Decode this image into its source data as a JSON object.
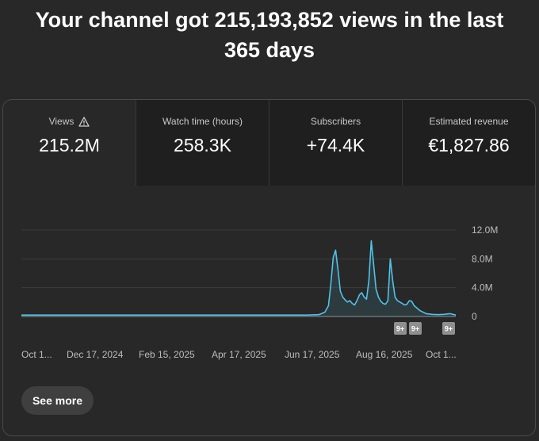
{
  "headline": {
    "line1": "Your channel got 215,193,852 views in the last",
    "line2": "365 days"
  },
  "tabs": [
    {
      "label": "Views",
      "value": "215.2M",
      "icon": "warning-icon",
      "active": true
    },
    {
      "label": "Watch time (hours)",
      "value": "258.3K"
    },
    {
      "label": "Subscribers",
      "value": "+74.4K"
    },
    {
      "label": "Estimated revenue",
      "value": "€1,827.86"
    }
  ],
  "see_more_label": "See more",
  "colors": {
    "series": "#4fc3e8",
    "background": "#282828",
    "tab_inactive": "#1f1f1f",
    "badge": "#8f8f8f"
  },
  "chart_data": {
    "type": "line",
    "ylim": [
      0,
      12000000
    ],
    "y_ticks": [
      {
        "value": 0,
        "label": "0"
      },
      {
        "value": 4000000,
        "label": "4.0M"
      },
      {
        "value": 8000000,
        "label": "8.0M"
      },
      {
        "value": 12000000,
        "label": "12.0M"
      }
    ],
    "x_tick_labels": [
      "Oct 1...",
      "Dec 17, 2024",
      "Feb 15, 2025",
      "Apr 17, 2025",
      "Jun 17, 2025",
      "Aug 16, 2025",
      "Oct 1..."
    ],
    "grid": true,
    "series": [
      {
        "x": [
          0,
          10,
          20,
          30,
          40,
          50,
          60,
          70,
          80,
          90,
          100,
          110,
          120,
          130,
          140,
          150,
          160,
          170,
          180,
          190,
          200,
          210,
          220,
          230,
          240,
          250,
          255,
          258,
          260,
          262,
          264,
          266,
          268,
          270,
          272,
          274,
          276,
          278,
          280,
          282,
          284,
          286,
          288,
          290,
          292,
          294,
          296,
          298,
          300,
          302,
          304,
          306,
          308,
          310,
          312,
          314,
          316,
          318,
          320,
          322,
          324,
          326,
          328,
          330,
          335,
          340,
          345,
          350,
          355,
          360,
          365
        ],
        "values": [
          200000,
          200000,
          200000,
          200000,
          200000,
          200000,
          200000,
          200000,
          200000,
          200000,
          200000,
          200000,
          200000,
          200000,
          200000,
          200000,
          200000,
          200000,
          200000,
          200000,
          200000,
          200000,
          200000,
          200000,
          200000,
          250000,
          600000,
          1500000,
          4500000,
          8200000,
          9200000,
          6500000,
          3500000,
          2700000,
          2300000,
          2000000,
          2200000,
          1800000,
          1600000,
          2200000,
          3000000,
          3300000,
          2700000,
          2400000,
          5000000,
          10500000,
          7200000,
          3800000,
          2700000,
          2100000,
          1800000,
          1700000,
          2200000,
          8000000,
          5000000,
          2700000,
          2200000,
          2000000,
          1800000,
          1600000,
          1700000,
          2200000,
          2100000,
          1500000,
          800000,
          400000,
          300000,
          250000,
          300000,
          400000,
          200000
        ]
      }
    ],
    "annotation_badges": [
      "9+",
      "9+",
      "9+"
    ]
  }
}
